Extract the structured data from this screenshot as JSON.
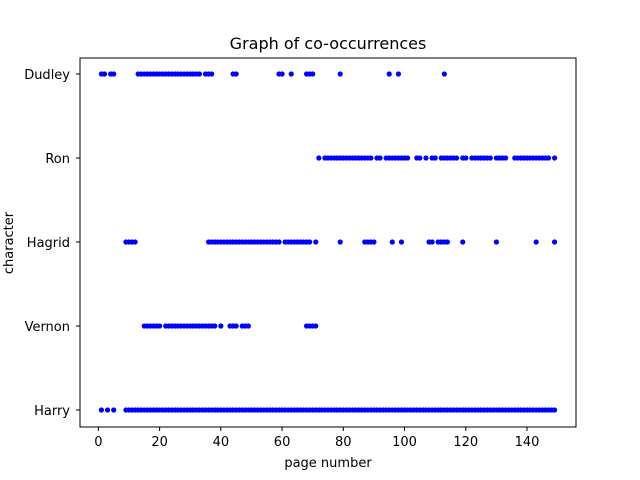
{
  "chart_data": {
    "type": "scatter",
    "title": "Graph of co-occurrences",
    "xlabel": "page number",
    "ylabel": "character",
    "xlim": [
      -6,
      156
    ],
    "x_ticks": [
      0,
      20,
      40,
      60,
      80,
      100,
      120,
      140
    ],
    "categories": [
      "Harry",
      "Vernon",
      "Hagrid",
      "Ron",
      "Dudley"
    ],
    "grid": false,
    "marker_color": "#0000ff",
    "series": [
      {
        "category": "Harry",
        "x": [
          1,
          3,
          5,
          9,
          10,
          11,
          12,
          13,
          14,
          15,
          16,
          17,
          18,
          19,
          20,
          21,
          22,
          23,
          24,
          25,
          26,
          27,
          28,
          29,
          30,
          31,
          32,
          33,
          34,
          35,
          36,
          37,
          38,
          39,
          40,
          41,
          42,
          43,
          44,
          45,
          46,
          47,
          48,
          49,
          50,
          51,
          52,
          53,
          54,
          55,
          56,
          57,
          58,
          59,
          60,
          61,
          62,
          63,
          64,
          65,
          66,
          67,
          68,
          69,
          70,
          71,
          72,
          73,
          74,
          75,
          76,
          77,
          78,
          79,
          80,
          81,
          82,
          83,
          84,
          85,
          86,
          87,
          88,
          89,
          90,
          91,
          92,
          93,
          94,
          95,
          96,
          97,
          98,
          99,
          100,
          101,
          102,
          103,
          104,
          105,
          106,
          107,
          108,
          109,
          110,
          111,
          112,
          113,
          114,
          115,
          116,
          117,
          118,
          119,
          120,
          121,
          122,
          123,
          124,
          125,
          126,
          127,
          128,
          129,
          130,
          131,
          132,
          133,
          134,
          135,
          136,
          137,
          138,
          139,
          140,
          141,
          142,
          143,
          144,
          145,
          146,
          147,
          148,
          149
        ]
      },
      {
        "category": "Vernon",
        "x": [
          15,
          16,
          17,
          18,
          19,
          20,
          22,
          23,
          24,
          25,
          26,
          27,
          28,
          29,
          30,
          31,
          32,
          33,
          34,
          35,
          36,
          37,
          38,
          40,
          43,
          44,
          45,
          47,
          48,
          49,
          68,
          69,
          70,
          71
        ]
      },
      {
        "category": "Hagrid",
        "x": [
          9,
          10,
          11,
          12,
          36,
          37,
          38,
          39,
          40,
          41,
          42,
          43,
          44,
          45,
          46,
          47,
          48,
          49,
          50,
          51,
          52,
          53,
          54,
          55,
          56,
          57,
          58,
          59,
          61,
          62,
          63,
          64,
          65,
          66,
          67,
          68,
          69,
          71,
          79,
          87,
          88,
          89,
          90,
          96,
          99,
          108,
          109,
          111,
          112,
          113,
          114,
          119,
          130,
          143,
          149
        ]
      },
      {
        "category": "Ron",
        "x": [
          72,
          74,
          75,
          76,
          77,
          78,
          79,
          80,
          81,
          82,
          83,
          84,
          85,
          86,
          87,
          88,
          89,
          91,
          92,
          94,
          95,
          96,
          97,
          98,
          99,
          100,
          101,
          104,
          105,
          107,
          109,
          110,
          112,
          113,
          114,
          115,
          116,
          117,
          119,
          120,
          122,
          123,
          124,
          125,
          126,
          127,
          128,
          130,
          131,
          132,
          133,
          136,
          137,
          138,
          139,
          140,
          141,
          142,
          143,
          144,
          145,
          146,
          147,
          149
        ]
      },
      {
        "category": "Dudley",
        "x": [
          1,
          2,
          4,
          5,
          13,
          14,
          15,
          16,
          17,
          18,
          19,
          20,
          21,
          22,
          23,
          24,
          25,
          26,
          27,
          28,
          29,
          30,
          31,
          32,
          33,
          35,
          36,
          37,
          44,
          45,
          59,
          60,
          63,
          68,
          69,
          70,
          79,
          95,
          98,
          113
        ]
      }
    ]
  }
}
